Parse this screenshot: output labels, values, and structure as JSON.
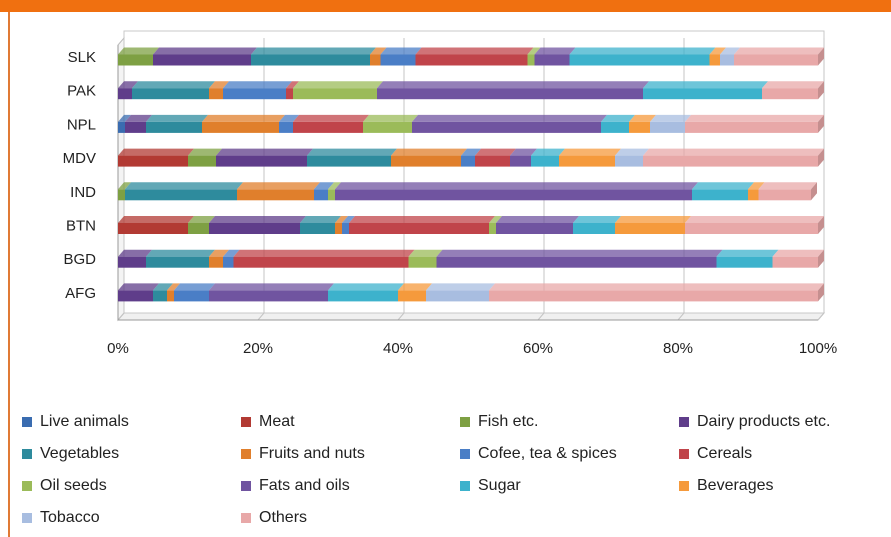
{
  "chart_data": {
    "type": "bar",
    "orientation": "horizontal",
    "stacked": "100%",
    "categories": [
      "SLK",
      "PAK",
      "NPL",
      "MDV",
      "IND",
      "BTN",
      "BGD",
      "AFG"
    ],
    "xticks": [
      "0%",
      "20%",
      "40%",
      "60%",
      "80%",
      "100%"
    ],
    "xlim": [
      0,
      100
    ],
    "grid": true,
    "legend_position": "bottom",
    "series": [
      {
        "name": "Live animals",
        "color": "#3a6cb0",
        "values": [
          0.0,
          0.0,
          1.0,
          0.0,
          0.0,
          0.0,
          0.0,
          0.0
        ]
      },
      {
        "name": "Meat",
        "color": "#b23a33",
        "values": [
          0.0,
          0.0,
          0.0,
          10.0,
          0.0,
          10.0,
          0.0,
          0.0
        ]
      },
      {
        "name": "Fish etc.",
        "color": "#7ea043",
        "values": [
          5.0,
          0.0,
          0.0,
          4.0,
          1.0,
          3.0,
          0.0,
          0.0
        ]
      },
      {
        "name": "Dairy products etc.",
        "color": "#5f3d8a",
        "values": [
          14.0,
          2.0,
          3.0,
          13.0,
          0.0,
          13.0,
          4.0,
          5.0
        ]
      },
      {
        "name": "Vegetables",
        "color": "#2e8b9d",
        "values": [
          17.0,
          11.0,
          8.0,
          12.0,
          16.0,
          5.0,
          9.0,
          2.0
        ]
      },
      {
        "name": "Fruits and nuts",
        "color": "#e07f2c",
        "values": [
          1.5,
          2.0,
          11.0,
          10.0,
          11.0,
          1.0,
          2.0,
          1.0
        ]
      },
      {
        "name": "Cofee, tea & spices",
        "color": "#4a7ec6",
        "values": [
          5.0,
          9.0,
          2.0,
          2.0,
          2.0,
          1.0,
          1.5,
          5.0
        ]
      },
      {
        "name": "Cereals",
        "color": "#c0444a",
        "values": [
          16.0,
          1.0,
          10.0,
          5.0,
          0.0,
          20.0,
          25.0,
          0.0
        ]
      },
      {
        "name": "Oil seeds",
        "color": "#9bbb59",
        "values": [
          1.0,
          12.0,
          7.0,
          0.0,
          1.0,
          1.0,
          4.0,
          0.0
        ]
      },
      {
        "name": "Fats and oils",
        "color": "#7054a0",
        "values": [
          5.0,
          38.0,
          27.0,
          3.0,
          51.0,
          11.0,
          40.0,
          17.0
        ]
      },
      {
        "name": "Sugar",
        "color": "#3db2cc",
        "values": [
          20.0,
          17.0,
          4.0,
          4.0,
          8.0,
          6.0,
          8.0,
          10.0
        ]
      },
      {
        "name": "Beverages",
        "color": "#f59a3c",
        "values": [
          1.5,
          0.0,
          3.0,
          8.0,
          1.5,
          10.0,
          0.0,
          4.0
        ]
      },
      {
        "name": "Tobacco",
        "color": "#a8bde0",
        "values": [
          2.0,
          0.0,
          5.0,
          4.0,
          0.0,
          0.0,
          0.0,
          9.0
        ]
      },
      {
        "name": "Others",
        "color": "#e8a8a8",
        "values": [
          12.0,
          8.0,
          19.0,
          25.0,
          7.5,
          19.0,
          6.5,
          47.0
        ]
      }
    ]
  }
}
